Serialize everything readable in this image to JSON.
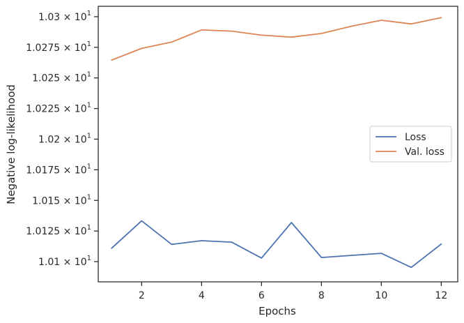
{
  "chart_data": {
    "type": "line",
    "xlabel": "Epochs",
    "ylabel": "Negative log-likelihood",
    "xlim": [
      0.55,
      12.55
    ],
    "ylim": [
      10.0835,
      10.3085
    ],
    "x_ticks": [
      2,
      4,
      6,
      8,
      10,
      12
    ],
    "y_ticks": [
      {
        "value": 10.1,
        "label": "1.01"
      },
      {
        "value": 10.125,
        "label": "1.0125"
      },
      {
        "value": 10.15,
        "label": "1.015"
      },
      {
        "value": 10.175,
        "label": "1.0175"
      },
      {
        "value": 10.2,
        "label": "1.02"
      },
      {
        "value": 10.225,
        "label": "1.0225"
      },
      {
        "value": 10.25,
        "label": "1.025"
      },
      {
        "value": 10.275,
        "label": "1.0275"
      },
      {
        "value": 10.3,
        "label": "1.03"
      }
    ],
    "y_tick_suffix": "× 10",
    "y_tick_exponent": "1",
    "grid": false,
    "legend_position": "center-right",
    "x": [
      1,
      2,
      3,
      4,
      5,
      6,
      7,
      8,
      9,
      10,
      11,
      12
    ],
    "series": [
      {
        "name": "Loss",
        "color": "#4c72b0",
        "values": [
          10.111,
          10.1333,
          10.1141,
          10.1171,
          10.1159,
          10.1029,
          10.1319,
          10.1034,
          10.1051,
          10.1068,
          10.0953,
          10.1143
        ]
      },
      {
        "name": "Val. loss",
        "color": "#dd8452",
        "values": [
          10.2646,
          10.2741,
          10.2793,
          10.2892,
          10.2882,
          10.2849,
          10.2833,
          10.2863,
          10.2922,
          10.2971,
          10.2941,
          10.2992
        ]
      }
    ]
  }
}
